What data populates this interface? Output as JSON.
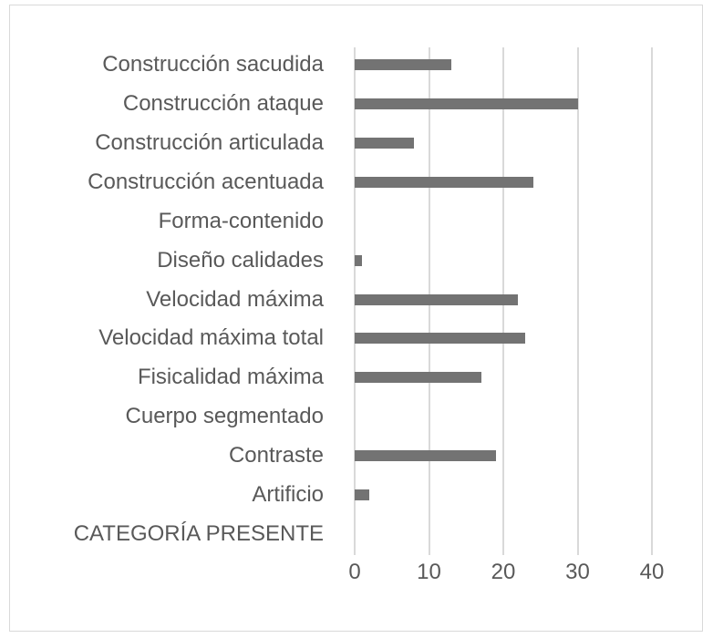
{
  "chart_data": {
    "type": "bar",
    "orientation": "horizontal",
    "title": "",
    "xlabel": "",
    "ylabel": "",
    "categories": [
      "Construcción sacudida",
      "Construcción ataque",
      "Construcción articulada",
      "Construcción acentuada",
      "Forma-contenido",
      "Diseño calidades",
      "Velocidad máxima",
      "Velocidad máxima total",
      "Fisicalidad máxima",
      "Cuerpo segmentado",
      "Contraste",
      "Artificio",
      "CATEGORÍA PRESENTE"
    ],
    "values": [
      13,
      30,
      8,
      24,
      0,
      1,
      22,
      23,
      17,
      0,
      19,
      2,
      0
    ],
    "xlim": [
      0,
      40
    ],
    "xticks": [
      "0",
      "10",
      "20",
      "30",
      "40"
    ],
    "grid": true,
    "legend": null,
    "bar_color": "#737373"
  }
}
